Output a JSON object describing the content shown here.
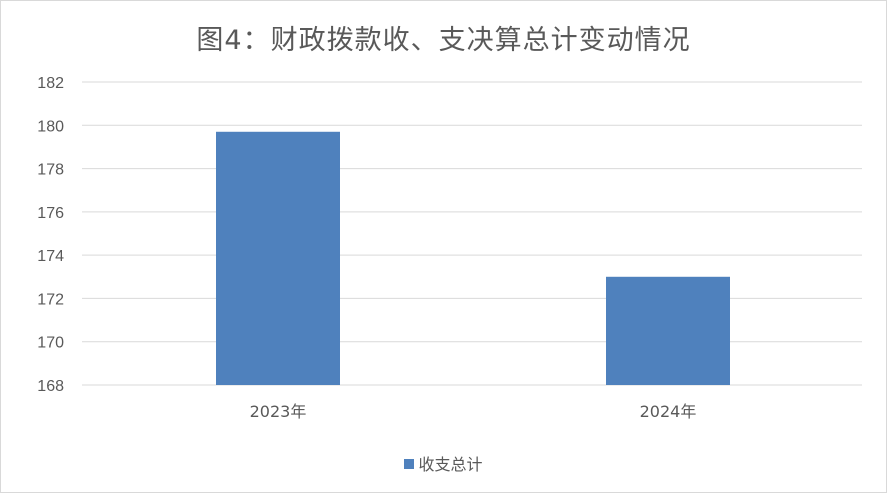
{
  "chart_data": {
    "type": "bar",
    "title": "图4：财政拨款收、支决算总计变动情况",
    "categories": [
      "2023年",
      "2024年"
    ],
    "series": [
      {
        "name": "收支总计",
        "values": [
          179.7,
          173.0
        ],
        "color": "#4f81bd"
      }
    ],
    "xlabel": "",
    "ylabel": "",
    "ylim": [
      168,
      182
    ],
    "yticks": [
      168,
      170,
      172,
      174,
      176,
      178,
      180,
      182
    ],
    "grid": true,
    "legend_position": "bottom"
  }
}
